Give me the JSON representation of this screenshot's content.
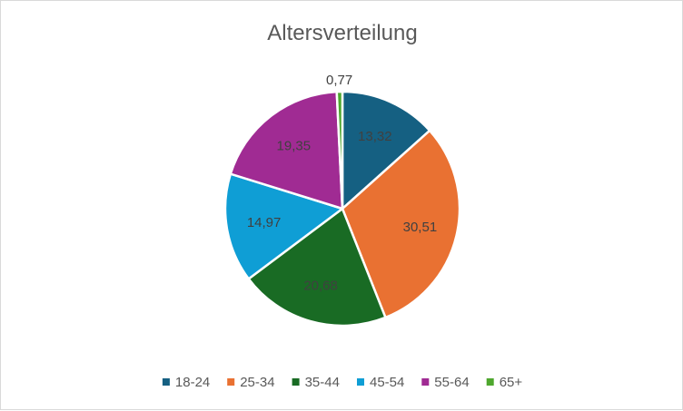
{
  "chart_data": {
    "type": "pie",
    "title": "Altersverteilung",
    "categories": [
      "18-24",
      "25-34",
      "35-44",
      "45-54",
      "55-64",
      "65+"
    ],
    "values": [
      13.32,
      30.51,
      20.68,
      14.97,
      19.35,
      0.77
    ],
    "value_labels": [
      "13,32",
      "30,51",
      "20,68",
      "14,97",
      "19,35",
      "0,77"
    ],
    "colors": [
      "#156082",
      "#E97132",
      "#196B24",
      "#0F9ED5",
      "#A02B93",
      "#4EA72E"
    ],
    "legend": "bottom",
    "data_labels": true
  }
}
